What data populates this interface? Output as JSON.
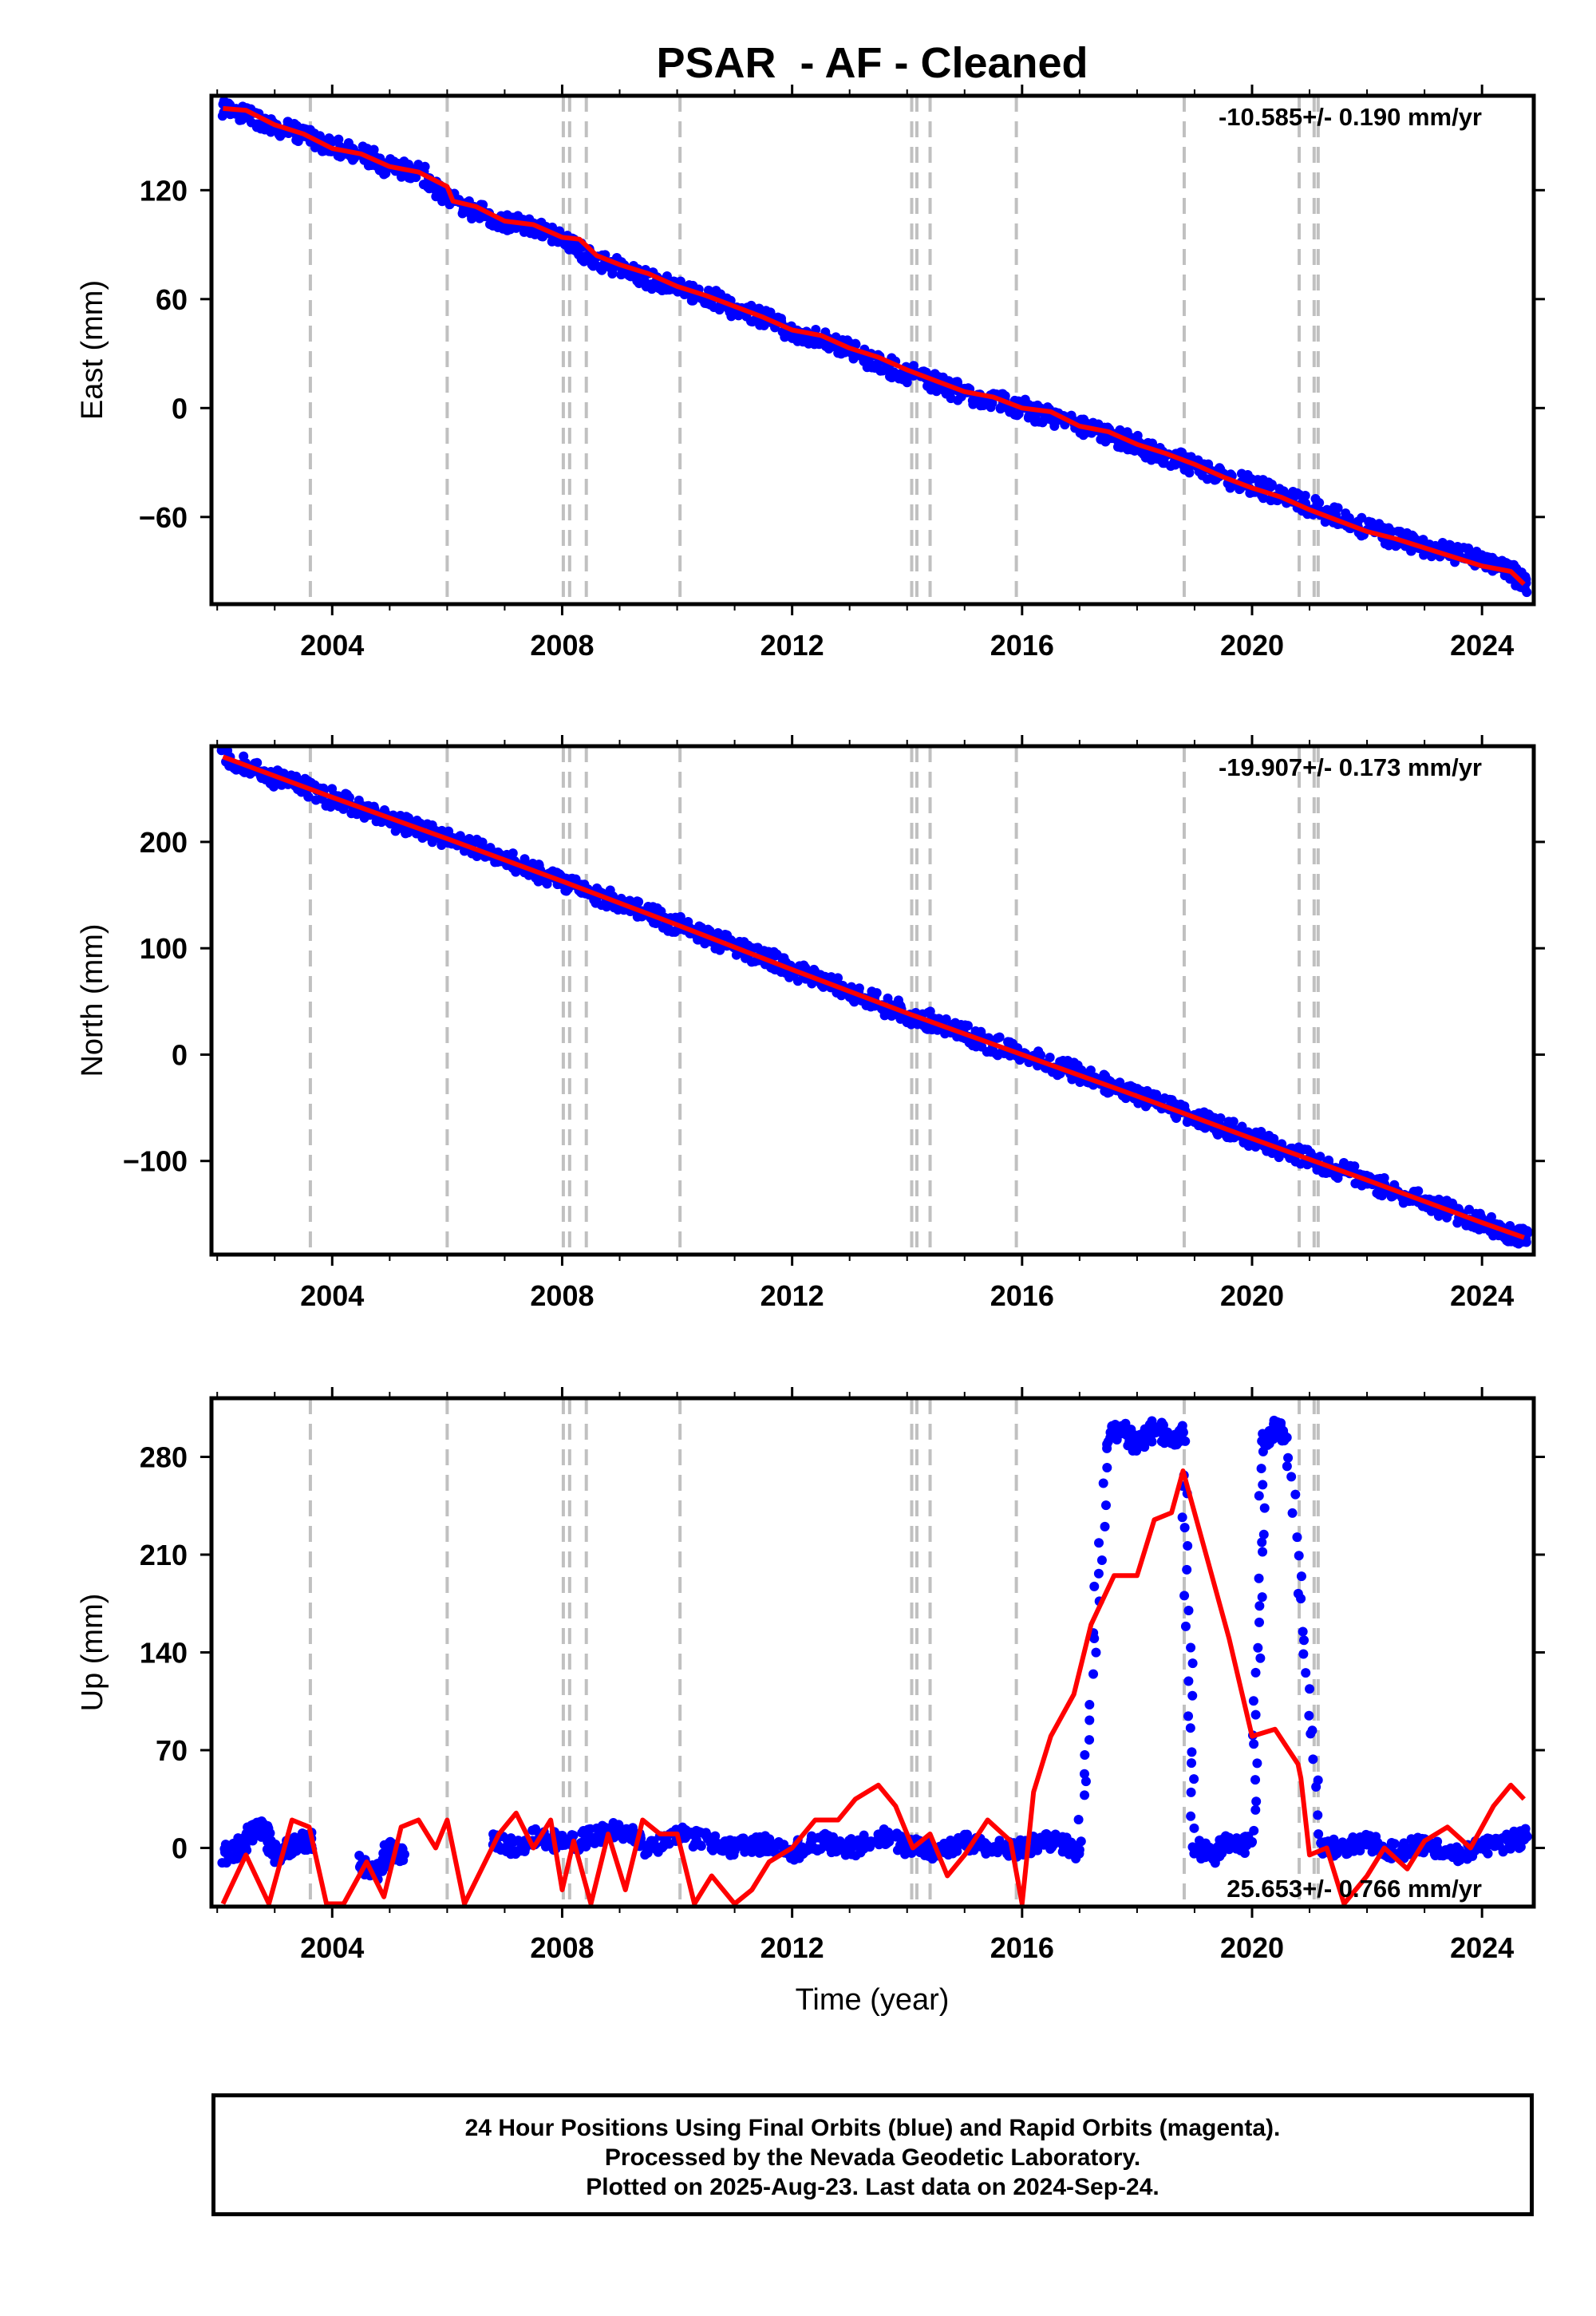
{
  "title": "PSAR  - AF - Cleaned",
  "colors": {
    "data_points": "#0000ff",
    "model_line": "#ff0000",
    "event_lines": "#c0c0c0",
    "frame": "#000000"
  },
  "xaxis": {
    "label": "Time (year)",
    "range": [
      2001.9,
      2024.9
    ],
    "ticks": [
      2004,
      2008,
      2012,
      2016,
      2020,
      2024
    ],
    "tick_labels": [
      "2004",
      "2008",
      "2012",
      "2016",
      "2020",
      "2024"
    ]
  },
  "event_years": [
    2003.62,
    2006.0,
    2008.02,
    2008.13,
    2008.42,
    2010.05,
    2014.08,
    2014.17,
    2014.4,
    2015.9,
    2018.82,
    2020.82,
    2021.08,
    2021.15
  ],
  "chart_data": [
    {
      "type": "scatter",
      "name": "east",
      "ylabel": "East (mm)",
      "ylim": [
        -108,
        172
      ],
      "yticks": [
        -60,
        0,
        60,
        120
      ],
      "ytick_labels": [
        "−60",
        "0",
        "60",
        "120"
      ],
      "rate_label": "-10.585+/- 0.190 mm/yr",
      "x": [
        2002.1,
        2002.5,
        2003.0,
        2003.6,
        2004.0,
        2004.5,
        2005.0,
        2005.5,
        2006.0,
        2006.5,
        2007.0,
        2007.5,
        2008.0,
        2008.5,
        2009.0,
        2009.5,
        2010.0,
        2010.5,
        2011.0,
        2011.5,
        2012.0,
        2012.5,
        2013.0,
        2013.5,
        2014.0,
        2014.5,
        2015.0,
        2015.5,
        2016.0,
        2016.5,
        2017.0,
        2017.5,
        2018.0,
        2018.5,
        2019.0,
        2019.5,
        2020.0,
        2020.5,
        2021.0,
        2021.5,
        2022.0,
        2022.5,
        2023.0,
        2023.5,
        2024.0,
        2024.5,
        2024.73
      ],
      "y": [
        165,
        162,
        155,
        150,
        144,
        140,
        133,
        131,
        114,
        109,
        102,
        100,
        93,
        83,
        77,
        71,
        66,
        62,
        55,
        50,
        42,
        38,
        32,
        25,
        19,
        14,
        8,
        5,
        0,
        -5,
        -10,
        -15,
        -20,
        -27,
        -32,
        -38,
        -42,
        -48,
        -54,
        -60,
        -66,
        -72,
        -76,
        -80,
        -84,
        -90,
        -97
      ],
      "model_x": [
        2002.1,
        2002.5,
        2003.0,
        2003.5,
        2004.0,
        2004.5,
        2005.0,
        2005.5,
        2006.0,
        2006.1,
        2006.5,
        2007.0,
        2007.5,
        2008.0,
        2008.3,
        2008.6,
        2009.0,
        2009.5,
        2010.0,
        2010.5,
        2011.0,
        2011.5,
        2012.0,
        2012.5,
        2013.0,
        2013.5,
        2014.0,
        2014.5,
        2015.0,
        2015.5,
        2016.0,
        2016.5,
        2017.0,
        2017.5,
        2018.0,
        2018.5,
        2019.0,
        2019.5,
        2020.0,
        2020.5,
        2021.0,
        2021.5,
        2022.0,
        2022.5,
        2023.0,
        2023.5,
        2024.0,
        2024.5,
        2024.73
      ],
      "model_y": [
        165,
        164,
        156,
        151,
        143,
        140,
        133,
        130,
        122,
        114,
        111,
        103,
        101,
        94,
        93,
        84,
        79,
        74,
        67,
        62,
        56,
        50,
        43,
        40,
        33,
        28,
        21,
        15,
        9,
        6,
        0,
        -2,
        -10,
        -13,
        -20,
        -25,
        -31,
        -38,
        -44,
        -49,
        -56,
        -62,
        -68,
        -72,
        -77,
        -82,
        -87,
        -90,
        -97
      ]
    },
    {
      "type": "scatter",
      "name": "north",
      "ylabel": "North (mm)",
      "ylim": [
        -188,
        290
      ],
      "yticks": [
        -100,
        0,
        100,
        200
      ],
      "ytick_labels": [
        "−100",
        "0",
        "100",
        "200"
      ],
      "rate_label": "-19.907+/- 0.173 mm/yr",
      "x": [
        2002.1,
        2002.5,
        2003.0,
        2003.5,
        2004.0,
        2004.5,
        2005.0,
        2005.5,
        2006.0,
        2006.5,
        2007.0,
        2007.5,
        2008.0,
        2008.5,
        2009.0,
        2009.5,
        2010.0,
        2010.5,
        2011.0,
        2011.5,
        2012.0,
        2012.5,
        2013.0,
        2013.5,
        2014.0,
        2014.5,
        2015.0,
        2015.5,
        2016.0,
        2016.5,
        2017.0,
        2017.5,
        2018.0,
        2018.5,
        2019.0,
        2019.5,
        2020.0,
        2020.5,
        2021.0,
        2021.5,
        2022.0,
        2022.5,
        2023.0,
        2023.5,
        2024.0,
        2024.5,
        2024.73
      ],
      "y": [
        280,
        271,
        260,
        251,
        241,
        231,
        220,
        212,
        203,
        195,
        184,
        174,
        163,
        152,
        143,
        132,
        122,
        111,
        102,
        92,
        80,
        70,
        60,
        49,
        38,
        30,
        20,
        9,
        0,
        -9,
        -18,
        -28,
        -38,
        -48,
        -58,
        -68,
        -78,
        -88,
        -98,
        -108,
        -118,
        -128,
        -138,
        -148,
        -158,
        -168,
        -172
      ],
      "model_x": [
        2002.1,
        2004.0,
        2006.0,
        2008.0,
        2010.0,
        2012.0,
        2014.0,
        2016.0,
        2018.0,
        2020.0,
        2022.0,
        2024.0,
        2024.73
      ],
      "model_y": [
        280,
        242,
        203,
        163,
        122,
        80,
        39,
        0,
        -39,
        -79,
        -118,
        -158,
        -172
      ]
    },
    {
      "type": "scatter",
      "name": "up",
      "ylabel": "Up (mm)",
      "ylim": [
        -42,
        322
      ],
      "yticks": [
        0,
        70,
        140,
        210,
        280
      ],
      "ytick_labels": [
        "0",
        "70",
        "140",
        "210",
        "280"
      ],
      "rate_label": "25.653+/- 0.766 mm/yr",
      "x": [
        2002.1,
        2002.4,
        2002.6,
        2002.8,
        2003.0,
        2003.3,
        2003.6,
        2004.5,
        2004.8,
        2005.0,
        2005.2,
        2006.8,
        2007.2,
        2007.6,
        2008.0,
        2008.5,
        2009.0,
        2009.5,
        2010.0,
        2010.5,
        2011.0,
        2011.5,
        2012.0,
        2012.5,
        2013.0,
        2013.5,
        2014.0,
        2014.5,
        2015.0,
        2015.5,
        2016.0,
        2016.5,
        2017.0,
        2017.5,
        2017.7,
        2018.0,
        2018.3,
        2018.6,
        2018.8,
        2019.0,
        2019.3,
        2019.6,
        2020.0,
        2020.2,
        2020.4,
        2020.6,
        2021.2,
        2021.6,
        2022.0,
        2022.5,
        2023.0,
        2023.5,
        2024.0,
        2024.5,
        2024.73
      ],
      "y": [
        -5,
        0,
        10,
        15,
        -5,
        2,
        5,
        -10,
        -18,
        0,
        -5,
        5,
        0,
        10,
        2,
        8,
        15,
        -2,
        10,
        5,
        0,
        3,
        -3,
        5,
        0,
        8,
        2,
        -5,
        5,
        0,
        0,
        5,
        -3,
        295,
        300,
        288,
        302,
        292,
        298,
        0,
        -5,
        3,
        2,
        290,
        300,
        296,
        2,
        -2,
        5,
        -3,
        3,
        -5,
        0,
        5,
        8
      ],
      "model_x": [
        2002.1,
        2002.5,
        2002.9,
        2003.3,
        2003.6,
        2003.9,
        2004.2,
        2004.6,
        2004.9,
        2005.2,
        2005.5,
        2005.8,
        2006.0,
        2006.3,
        2006.6,
        2006.9,
        2007.2,
        2007.5,
        2007.8,
        2008.0,
        2008.2,
        2008.5,
        2008.8,
        2009.1,
        2009.4,
        2009.7,
        2010.0,
        2010.3,
        2010.6,
        2011.0,
        2011.3,
        2011.6,
        2012.0,
        2012.4,
        2012.8,
        2013.1,
        2013.5,
        2013.8,
        2014.1,
        2014.4,
        2014.7,
        2015.0,
        2015.4,
        2015.8,
        2016.0,
        2016.2,
        2016.5,
        2016.9,
        2017.2,
        2017.6,
        2018.0,
        2018.3,
        2018.6,
        2018.8,
        2019.2,
        2019.6,
        2020.0,
        2020.4,
        2020.8,
        2020.85,
        2021.0,
        2021.3,
        2021.6,
        2022.0,
        2022.3,
        2022.7,
        2023.0,
        2023.4,
        2023.8,
        2024.2,
        2024.5,
        2024.73
      ],
      "model_y": [
        -40,
        -5,
        -40,
        20,
        15,
        -40,
        -40,
        -10,
        -35,
        15,
        20,
        0,
        20,
        -40,
        -15,
        10,
        25,
        0,
        20,
        -30,
        5,
        -40,
        10,
        -30,
        20,
        10,
        10,
        -40,
        -20,
        -40,
        -30,
        -10,
        0,
        20,
        20,
        35,
        45,
        30,
        0,
        10,
        -20,
        -5,
        20,
        5,
        -40,
        40,
        80,
        110,
        160,
        195,
        195,
        235,
        240,
        270,
        210,
        150,
        80,
        85,
        60,
        50,
        -5,
        0,
        -40,
        -20,
        0,
        -15,
        5,
        15,
        0,
        30,
        45,
        35
      ]
    }
  ],
  "footer": {
    "line1": "24 Hour Positions Using Final Orbits (blue) and Rapid Orbits (magenta).",
    "line2": "Processed by the Nevada Geodetic Laboratory.",
    "line3": "Plotted on 2025-Aug-23. Last data on 2024-Sep-24."
  }
}
